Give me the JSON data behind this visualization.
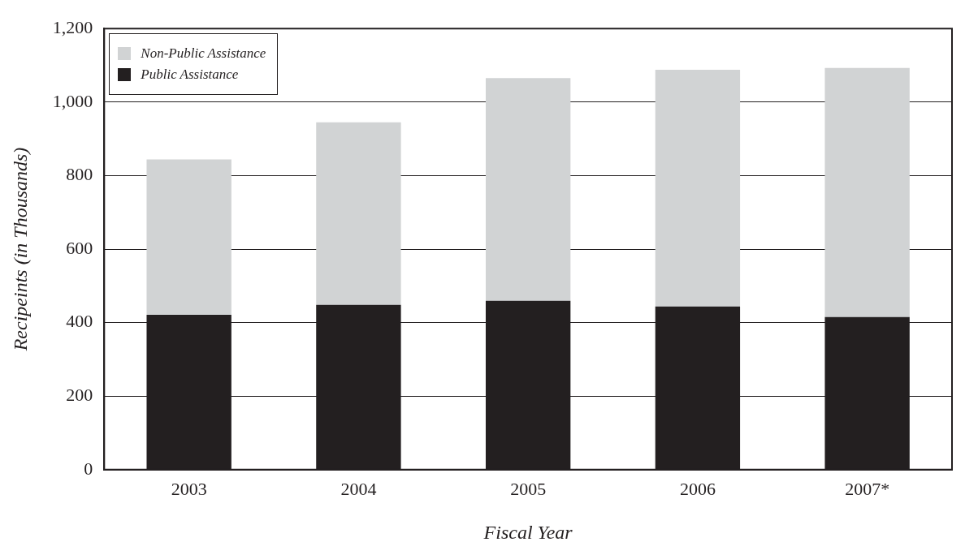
{
  "chart_data": {
    "type": "bar",
    "stacked": true,
    "xlabel": "Fiscal Year",
    "ylabel": "Recipeints (in Thousands)",
    "categories": [
      "2003",
      "2004",
      "2005",
      "2006",
      "2007*"
    ],
    "series": [
      {
        "name": "Public Assistance",
        "color": "#231f20",
        "values": [
          421,
          448,
          459,
          444,
          415
        ]
      },
      {
        "name": "Non-Public Assistance",
        "color": "#d1d3d4",
        "values": [
          423,
          497,
          606,
          644,
          678
        ]
      }
    ],
    "ylim": [
      0,
      1200
    ],
    "yticks": [
      0,
      {
        "value": 200,
        "label": "200"
      },
      {
        "value": 400,
        "label": "400"
      },
      {
        "value": 600,
        "label": "600"
      },
      {
        "value": 800,
        "label": "800"
      },
      {
        "value": 1000,
        "label": "1,000"
      },
      {
        "value": 1200,
        "label": "1,200"
      }
    ],
    "grid": "y",
    "legend": "top left"
  }
}
